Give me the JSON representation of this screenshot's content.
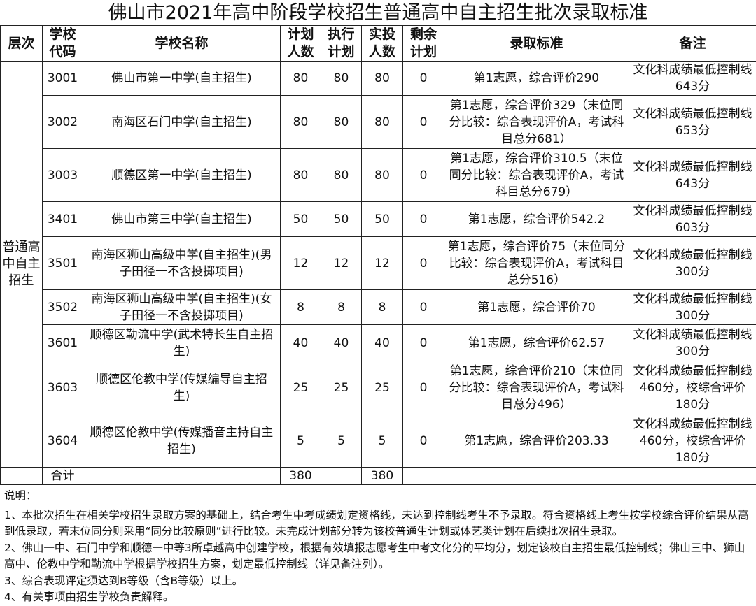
{
  "title": "佛山市2021年高中阶段学校招生普通高中自主招生批次录取标准",
  "headers": [
    "层次",
    "学校代码",
    "学校名称",
    "计划人数",
    "执行计划",
    "实投人数",
    "剩余计划",
    "录取标准",
    "备注"
  ],
  "level": "普通高中自主招生",
  "rows": [
    {
      "code": "3001",
      "name": "佛山市第一中学(自主招生)",
      "plan": "80",
      "exec": "80",
      "actual": "80",
      "remain": "0",
      "standard": "第1志愿，综合评价290",
      "note": "文化科成绩最低控制线643分"
    },
    {
      "code": "3002",
      "name": "南海区石门中学(自主招生)",
      "plan": "80",
      "exec": "80",
      "actual": "80",
      "remain": "0",
      "standard": "第1志愿，综合评价329（末位同分比较：综合表现评价A，考试科目总分681）",
      "note": "文化科成绩最低控制线653分"
    },
    {
      "code": "3003",
      "name": "顺德区第一中学(自主招生)",
      "plan": "80",
      "exec": "80",
      "actual": "80",
      "remain": "0",
      "standard": "第1志愿，综合评价310.5（末位同分比较：综合表现评价A，考试科目总分679）",
      "note": "文化科成绩最低控制线643分"
    },
    {
      "code": "3401",
      "name": "佛山市第三中学(自主招生)",
      "plan": "50",
      "exec": "50",
      "actual": "50",
      "remain": "0",
      "standard": "第1志愿，综合评价542.2",
      "note": "文化科成绩最低控制线603分"
    },
    {
      "code": "3501",
      "name": "南海区狮山高级中学(自主招生)(男子田径一不含投掷项目)",
      "plan": "12",
      "exec": "12",
      "actual": "12",
      "remain": "0",
      "standard": "第1志愿，综合评价75（末位同分比较：综合表现评价A，考试科目总分516）",
      "note": "文化科成绩最低控制线300分"
    },
    {
      "code": "3502",
      "name": "南海区狮山高级中学(自主招生)(女子田径一不含投掷项目)",
      "plan": "8",
      "exec": "8",
      "actual": "8",
      "remain": "0",
      "standard": "第1志愿，综合评价70",
      "note": "文化科成绩最低控制线300分"
    },
    {
      "code": "3601",
      "name": "顺德区勒流中学(武术特长生自主招生)",
      "plan": "40",
      "exec": "40",
      "actual": "40",
      "remain": "0",
      "standard": "第1志愿，综合评价62.57",
      "note": "文化科成绩最低控制线300分"
    },
    {
      "code": "3603",
      "name": "顺德区伦教中学(传媒编导自主招生)",
      "plan": "25",
      "exec": "25",
      "actual": "25",
      "remain": "0",
      "standard": "第1志愿，综合评价210（末位同分比较：综合表现评价A，考试科目总分496）",
      "note": "文化科成绩最低控制线460分，校综合评价180分"
    },
    {
      "code": "3604",
      "name": "顺德区伦教中学(传媒播音主持自主招生)",
      "plan": "5",
      "exec": "5",
      "actual": "5",
      "remain": "0",
      "standard": "第1志愿，综合评价203.33",
      "note": "文化科成绩最低控制线460分，校综合评价180分"
    }
  ],
  "total": {
    "label": "合计",
    "plan": "380",
    "actual": "380"
  },
  "notes": {
    "heading": "说明：",
    "items": [
      "1、本批次招生在相关学校招生录取方案的基础上，结合考生中考成绩划定资格线，未达到控制线考生不予录取。符合资格线上考生按学校综合评价结果从高到低录取，若末位同分则采用“同分比较原则”进行比较。未完成计划部分转为该校普通生计划或体艺类计划在后续批次招生录取。",
      "2、佛山一中、石门中学和顺德一中等3所卓越高中创建学校，根据有效填报志愿考生中考文化分的平均分，划定该校自主招生最低控制线；佛山三中、狮山高中、伦教中学和勒流中学根据学校招生方案，划定最低控制线（详见备注列）。",
      "3、综合表现评定须达到B等级（含B等级）以上。",
      "4、有关事项由招生学校负责解释。"
    ]
  }
}
